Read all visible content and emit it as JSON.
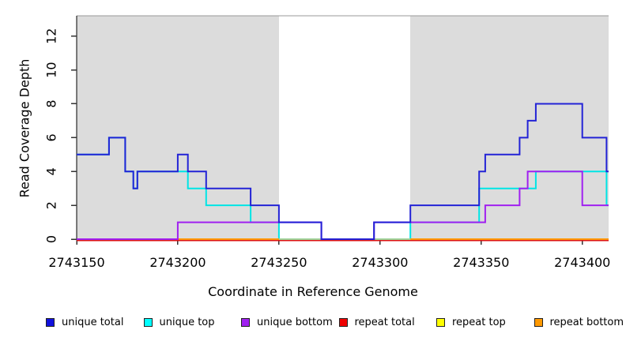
{
  "chart_data": {
    "type": "line",
    "subtype": "step-coverage",
    "title": "",
    "xlabel": "Coordinate in Reference Genome",
    "ylabel": "Read Coverage Depth",
    "xlim": [
      2743150,
      2743413
    ],
    "ylim": [
      0,
      13.2
    ],
    "x_ticks": [
      2743150,
      2743200,
      2743250,
      2743300,
      2743350,
      2743400
    ],
    "x_tick_labels": [
      "2743150",
      "2743200",
      "2743250",
      "2743300",
      "2743350",
      "2743400"
    ],
    "y_ticks": [
      0,
      2,
      4,
      6,
      8,
      10,
      12
    ],
    "y_tick_labels": [
      "0",
      "2",
      "4",
      "6",
      "8",
      "10",
      "12"
    ],
    "grid": false,
    "background_regions": [
      {
        "name": "shaded-left",
        "x1": 2743150,
        "x2": 2743250,
        "color": "#dcdcdc"
      },
      {
        "name": "shaded-right",
        "x1": 2743315,
        "x2": 2743413,
        "color": "#dcdcdc"
      }
    ],
    "unshaded_gap": {
      "x1": 2743250,
      "x2": 2743315,
      "overlap_blend_color": "#9fd49b"
    },
    "frame_top_color": "#999999",
    "series": [
      {
        "name": "repeat total",
        "color": "#dd1111",
        "draw_order": 1,
        "steps": [
          [
            2743150,
            0
          ]
        ],
        "end_x": 2743413
      },
      {
        "name": "repeat top",
        "color": "#ffff00",
        "draw_order": 2,
        "steps": [
          [
            2743150,
            0
          ]
        ],
        "end_x": 2743413
      },
      {
        "name": "unique top",
        "color": "#00e5e5",
        "draw_order": 3,
        "steps": [
          [
            2743150,
            5
          ],
          [
            2743166,
            6
          ],
          [
            2743174,
            4
          ],
          [
            2743178,
            3
          ],
          [
            2743180,
            4
          ],
          [
            2743205,
            3
          ],
          [
            2743214,
            2
          ],
          [
            2743236,
            1
          ],
          [
            2743250,
            0
          ],
          [
            2743315,
            1
          ],
          [
            2743349,
            3
          ],
          [
            2743377,
            4
          ],
          [
            2743412,
            2
          ]
        ],
        "end_x": 2743413
      },
      {
        "name": "repeat bottom",
        "color": "#ff9900",
        "draw_order": 4,
        "steps": [
          [
            2743150,
            0
          ]
        ],
        "end_x": 2743413
      },
      {
        "name": "unique bottom",
        "color": "#a020f0",
        "draw_order": 5,
        "steps": [
          [
            2743150,
            0
          ],
          [
            2743200,
            1
          ],
          [
            2743271,
            0
          ],
          [
            2743297,
            1
          ],
          [
            2743352,
            2
          ],
          [
            2743369,
            3
          ],
          [
            2743373,
            4
          ],
          [
            2743400,
            2
          ]
        ],
        "end_x": 2743413
      },
      {
        "name": "unique total",
        "color": "#2323d6",
        "draw_order": 6,
        "steps": [
          [
            2743150,
            5
          ],
          [
            2743166,
            6
          ],
          [
            2743174,
            4
          ],
          [
            2743178,
            3
          ],
          [
            2743180,
            4
          ],
          [
            2743200,
            5
          ],
          [
            2743205,
            4
          ],
          [
            2743214,
            3
          ],
          [
            2743236,
            2
          ],
          [
            2743250,
            1
          ],
          [
            2743271,
            0
          ],
          [
            2743297,
            1
          ],
          [
            2743315,
            2
          ],
          [
            2743349,
            4
          ],
          [
            2743352,
            5
          ],
          [
            2743369,
            6
          ],
          [
            2743373,
            7
          ],
          [
            2743377,
            8
          ],
          [
            2743400,
            6
          ],
          [
            2743412,
            4
          ]
        ],
        "end_x": 2743413
      }
    ]
  },
  "legend": {
    "items": [
      {
        "label": "unique total",
        "color": "#1111dd"
      },
      {
        "label": "unique top",
        "color": "#00ffff"
      },
      {
        "label": "unique bottom",
        "color": "#a020f0"
      },
      {
        "label": "repeat total",
        "color": "#ee0000"
      },
      {
        "label": "repeat top",
        "color": "#ffff00"
      },
      {
        "label": "repeat bottom",
        "color": "#ff9900"
      }
    ]
  }
}
